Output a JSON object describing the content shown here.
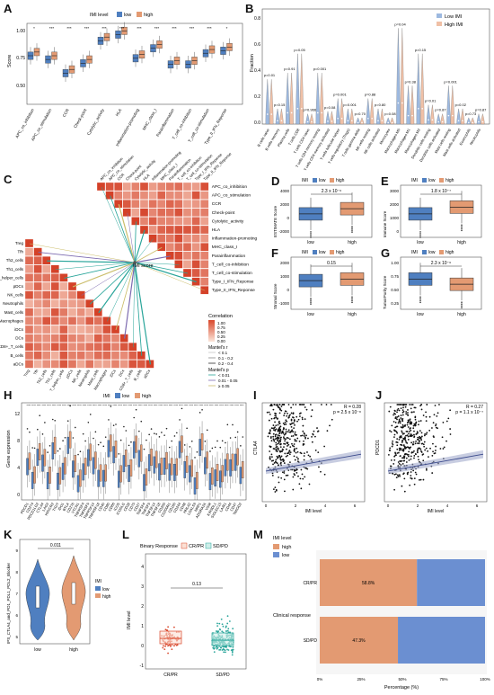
{
  "panel_labels": [
    "A",
    "B",
    "C",
    "D",
    "E",
    "F",
    "G",
    "H",
    "I",
    "J",
    "K",
    "L",
    "M"
  ],
  "colors": {
    "low": "#4f7fc0",
    "high": "#e39a72",
    "low_light": "#9db9e0",
    "high_light": "#f0c0a6",
    "teal": "#29a59a",
    "red": "#d9482c"
  },
  "panelA": {
    "legend_title": "IMI level",
    "legend_low": "low",
    "legend_high": "high",
    "ylabel": "Score",
    "yticks": [
      "1.00",
      "0.75",
      "0.50"
    ],
    "sig": [
      "*",
      "***",
      "***",
      "***",
      "***",
      "***",
      "***",
      "***",
      "***",
      "***",
      "***"
    ],
    "categories": [
      "APC_co_inhibition",
      "APC_co_stimulation",
      "CCR",
      "Check-point",
      "Cytolytic_activity",
      "HLA",
      "Inflammation-promoting",
      "MHC_class_I",
      "Parainflammation",
      "T_cell_co-inhibition",
      "T_cell_co-stimulation",
      "Type_II_IFN_Reponse"
    ]
  },
  "panelB": {
    "ylabel": "Fraction",
    "yticks": [
      "0.8",
      "0.6",
      "0.4",
      "0.2",
      "0.0"
    ],
    "legend_low": "Low IMI",
    "legend_high": "High IMI",
    "pvals": [
      "p=0.01",
      "p=0.15",
      "p=0.91",
      "p=0.05",
      "p=0.966",
      "p=0.001",
      "p=0.08",
      "p=0.001",
      "p=0.001",
      "p=0.70",
      "p=0.88",
      "p=0.80",
      "p=0.08",
      "p=0.04",
      "p=0.38",
      "p=0.15",
      "p=0.01",
      "p=0.87",
      "p=0.001",
      "p=0.02",
      "p=0.73",
      "p=0.87"
    ],
    "categories": [
      "B cells naive",
      "B cells memory",
      "Plasma cells",
      "T cells CD8",
      "T cells CD4 naive",
      "T cells CD4 memory resting",
      "T cells CD4 memory activated",
      "T cells follicular helper",
      "T cells regulatory (Tregs)",
      "T cells gamma delta",
      "NK cells resting",
      "NK cells activated",
      "Monocytes",
      "Macrophages M0",
      "Macrophages M1",
      "Macrophages M2",
      "Dendritic cells resting",
      "Dendritic cells activated",
      "Mast cells resting",
      "Mast cells activated",
      "Eosinophils",
      "Neutrophils"
    ]
  },
  "panelC": {
    "top_labels": [
      "APC_co_inhibition",
      "APC_co_stimulation",
      "CCR",
      "Check-point",
      "Cytolytic_activity",
      "HLA",
      "Inflammation-promoting",
      "MHC_class_I",
      "Parainflammation",
      "T_cell_co-inhibition",
      "T_cell_co-stimulation",
      "Type_I_IFN_Reponse",
      "Type_II_IFN_Reponse"
    ],
    "left_labels": [
      "Treg",
      "Tfh",
      "Th2_cells",
      "Th1_cells",
      "T_helper_cells",
      "pDCs",
      "NK_cells",
      "Neutrophils",
      "Mast_cells",
      "Macrophages",
      "iDCs",
      "DCs",
      "CD8+_T_cells",
      "B_cells",
      "aDCs"
    ],
    "center_label": "IMI score",
    "corr_title": "Correlation",
    "corr_ticks": [
      "1.00",
      "0.75",
      "0.50",
      "0.25",
      "0.00"
    ],
    "mantel_r_title": "Mantel's r",
    "mantel_r_items": [
      "< 0.1",
      "0.1 - 0.2",
      "0.2 - 0.4"
    ],
    "mantel_p_title": "Mantel's p",
    "mantel_p_items": [
      "< 0.01",
      "0.01 - 0.05",
      "≥ 0.05"
    ]
  },
  "panelD": {
    "legend_title": "IMI",
    "legend_low": "low",
    "legend_high": "high",
    "pval": "2.3 x 10⁻⁶",
    "ylabel": "ESTIMATE Score",
    "yticks": [
      "4000",
      "2000",
      "0",
      "-2000"
    ],
    "xticks": [
      "low",
      "high"
    ]
  },
  "panelE": {
    "legend_title": "IMI",
    "legend_low": "low",
    "legend_high": "high",
    "pval": "1.8 x 10⁻⁷",
    "ylabel": "Immune Score",
    "yticks": [
      "3000",
      "2000",
      "1000",
      "0"
    ],
    "xticks": [
      "low",
      "high"
    ]
  },
  "panelF": {
    "legend_title": "IMI",
    "legend_low": "low",
    "legend_high": "high",
    "pval": "0.15",
    "ylabel": "Stromal Score",
    "yticks": [
      "2000",
      "1000",
      "0",
      "-1000"
    ],
    "xticks": [
      "low",
      "high"
    ]
  },
  "panelG": {
    "legend_title": "IMI",
    "legend_low": "low",
    "legend_high": "high",
    "pval": "2.3 x 10⁻⁶",
    "ylabel": "TumorPurity Score",
    "yticks": [
      "1.00",
      "0.75",
      "0.50",
      "0.25"
    ],
    "xticks": [
      "low",
      "high"
    ]
  },
  "panelH": {
    "legend_title": "IMI",
    "legend_low": "low",
    "legend_high": "high",
    "ylabel": "Gene expression",
    "yticks": [
      "12",
      "8",
      "4",
      "0"
    ],
    "genes": [
      "PDCD1",
      "CD274",
      "PDCD1LG2",
      "CTLA4",
      "LAG3",
      "HAVCR2",
      "TIGIT",
      "IDO1",
      "BTLA",
      "CD276",
      "VTCN1",
      "TNFRSF4",
      "TNFRSF9",
      "TNFRSF14",
      "TNFRSF18",
      "CD40",
      "CD80",
      "CD86",
      "ICOS",
      "ICOSLG",
      "CD28",
      "CD70",
      "CD27",
      "TNFSF4",
      "TNFSF9",
      "TNFSF14",
      "TNFSF18",
      "CD200",
      "CD200R1",
      "CD160",
      "CD244",
      "CD48",
      "HHLA2",
      "LGALS9",
      "NRP1",
      "ADORA2A",
      "VSIR",
      "KIR3DL1",
      "SIGLEC15",
      "LAIR1",
      "CD44",
      "CD47",
      "TMIGD2"
    ]
  },
  "panelI": {
    "stats_r": "R = 0.28",
    "stats_p": "p = 2.5 x 10⁻⁸",
    "ylabel": "CTLA4",
    "xlabel": "IMI level",
    "yticks": [
      "4",
      "3",
      "2",
      "1",
      "0"
    ],
    "xticks": [
      "0",
      "2",
      "4",
      "6"
    ]
  },
  "panelJ": {
    "stats_r": "R = 0.27",
    "stats_p": "p = 1.1 x 10⁻⁷",
    "ylabel": "PDCD1",
    "xlabel": "IMI level",
    "yticks": [
      "6",
      "4",
      "2",
      "0"
    ],
    "xticks": [
      "0",
      "2",
      "4",
      "6"
    ]
  },
  "panelK": {
    "ylabel": "IPS_CTLA4_and_PD1_PDL1_PDL2_Blocker",
    "pval": "0.011",
    "legend_title": "IMI",
    "legend_low": "low",
    "legend_high": "high",
    "xticks": [
      "low",
      "high"
    ],
    "yticks": [
      "9",
      "8",
      "7",
      "6",
      "5"
    ]
  },
  "panelL": {
    "legend_title": "Binary Response",
    "legend_a": "CR/PR",
    "legend_b": "SD/PD",
    "pval": "0.13",
    "ylabel": "IMI level",
    "yticks": [
      "4",
      "3",
      "2",
      "1",
      "0",
      "-1"
    ],
    "xticks": [
      "CR/PR",
      "SD/PD"
    ]
  },
  "panelM": {
    "legend_title": "IMI level",
    "legend_high": "high",
    "legend_low": "low",
    "ylabel": "Clinical response",
    "xlabel": "Percentage (%)",
    "xticks": [
      "0%",
      "25%",
      "50%",
      "75%",
      "100%"
    ],
    "rows": [
      {
        "name": "CR/PR",
        "high_pct": 58.8,
        "label": "58.8%"
      },
      {
        "name": "SD/PD",
        "high_pct": 47.3,
        "label": "47.3%"
      }
    ]
  }
}
